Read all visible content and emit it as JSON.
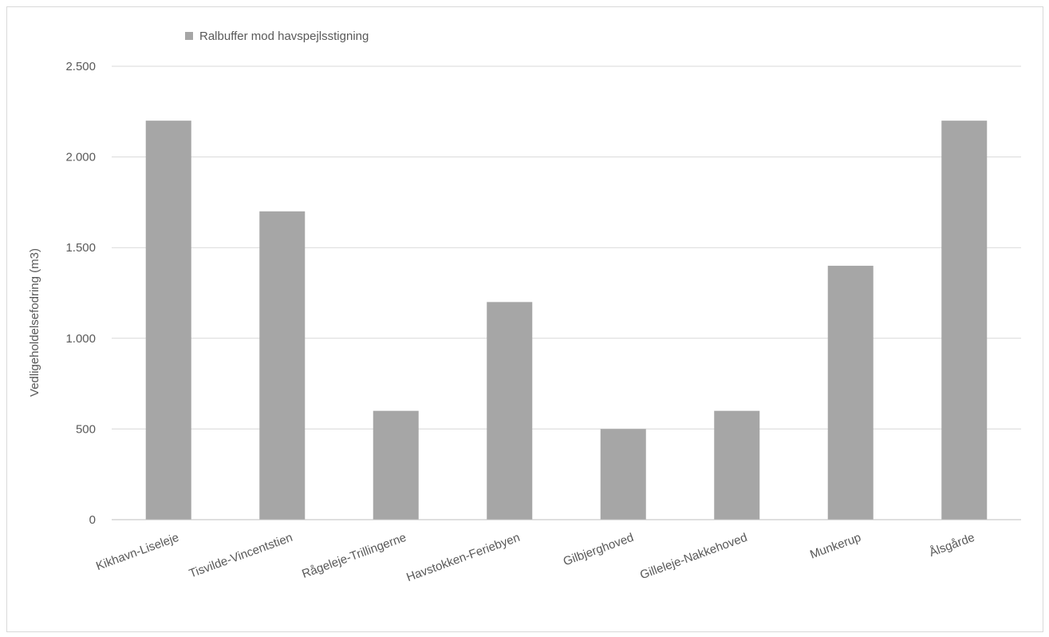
{
  "chart_data": {
    "type": "bar",
    "categories": [
      "Kikhavn-Liseleje",
      "Tisvilde-Vincentstien",
      "Rågeleje-Trillingerne",
      "Havstokken-Feriebyen",
      "Gilbjerghoved",
      "Gilleleje-Nakkehoved",
      "Munkerup",
      "Ålsgårde"
    ],
    "series": [
      {
        "name": "Ralbuffer mod havspejlsstigning",
        "values": [
          2200,
          1700,
          600,
          1200,
          500,
          600,
          1400,
          2200
        ],
        "color": "#a6a6a6"
      }
    ],
    "title": "",
    "xlabel": "",
    "ylabel": "Vedligeholdelsefodring (m3)",
    "ylim": [
      0,
      2500
    ],
    "yticks": [
      0,
      500,
      1000,
      1500,
      2000,
      2500
    ],
    "ytick_labels": [
      "0",
      "500",
      "1.000",
      "1.500",
      "2.000",
      "2.500"
    ],
    "grid": true,
    "legend_position": "top-left",
    "gridline_color": "#d9d9d9",
    "axis_color": "#bfbfbf"
  }
}
